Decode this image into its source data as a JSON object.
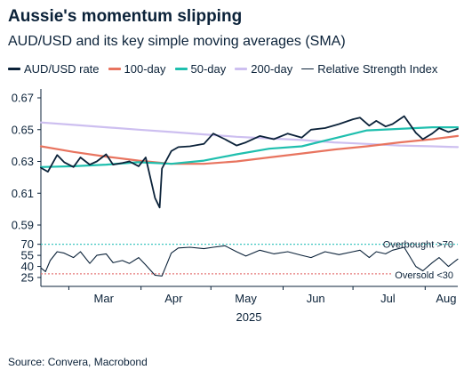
{
  "title": "Aussie's momentum slipping",
  "subtitle": "AUD/USD and its key simple moving averages (SMA)",
  "source": "Source: Convera, Macrobond",
  "colors": {
    "aud": "#0b2239",
    "sma100": "#e8745f",
    "sma50": "#1fbfae",
    "sma200": "#cdbff0",
    "rsi": "#0b2239",
    "overbought_line": "#3fc6c0",
    "oversold_line": "#e57a7a"
  },
  "legend": [
    {
      "label": "AUD/USD rate",
      "color": "#0b2239"
    },
    {
      "label": "100-day",
      "color": "#e8745f"
    },
    {
      "label": "50-day",
      "color": "#1fbfae"
    },
    {
      "label": "200-day",
      "color": "#cdbff0"
    },
    {
      "label": "Relative Strength Index",
      "color": "#0b2239"
    }
  ],
  "annotations": {
    "overbought": "Overbought >70",
    "oversold": "Oversold <30"
  },
  "chart_data": [
    {
      "type": "line",
      "ylim": [
        0.59,
        0.67
      ],
      "y_ticks": [
        "0.59",
        "0.61",
        "0.63",
        "0.65",
        "0.67"
      ],
      "x_range": [
        "2025-02-17",
        "2025-08-15"
      ],
      "series": [
        {
          "name": "AUD/USD rate",
          "key": "aud",
          "x": [
            "2025-02-17",
            "2025-02-20",
            "2025-02-24",
            "2025-02-27",
            "2025-03-03",
            "2025-03-06",
            "2025-03-10",
            "2025-03-13",
            "2025-03-17",
            "2025-03-20",
            "2025-03-24",
            "2025-03-27",
            "2025-03-31",
            "2025-04-03",
            "2025-04-07",
            "2025-04-09",
            "2025-04-10",
            "2025-04-14",
            "2025-04-17",
            "2025-04-22",
            "2025-04-28",
            "2025-05-02",
            "2025-05-07",
            "2025-05-12",
            "2025-05-16",
            "2025-05-22",
            "2025-05-28",
            "2025-06-03",
            "2025-06-09",
            "2025-06-13",
            "2025-06-19",
            "2025-06-25",
            "2025-07-01",
            "2025-07-04",
            "2025-07-08",
            "2025-07-11",
            "2025-07-15",
            "2025-07-18",
            "2025-07-23",
            "2025-07-28",
            "2025-07-31",
            "2025-08-04",
            "2025-08-07",
            "2025-08-11",
            "2025-08-15"
          ],
          "y": [
            0.626,
            0.6235,
            0.634,
            0.6295,
            0.6265,
            0.6325,
            0.628,
            0.63,
            0.6345,
            0.628,
            0.629,
            0.63,
            0.627,
            0.6325,
            0.607,
            0.601,
            0.6255,
            0.6365,
            0.639,
            0.6395,
            0.641,
            0.6475,
            0.644,
            0.64,
            0.642,
            0.646,
            0.644,
            0.6475,
            0.645,
            0.65,
            0.651,
            0.6535,
            0.6565,
            0.6575,
            0.6525,
            0.6555,
            0.652,
            0.6535,
            0.6585,
            0.648,
            0.644,
            0.6475,
            0.651,
            0.6485,
            0.6505
          ]
        },
        {
          "name": "100-day",
          "key": "sma100",
          "x": [
            "2025-02-17",
            "2025-03-03",
            "2025-03-17",
            "2025-03-31",
            "2025-04-14",
            "2025-04-28",
            "2025-05-12",
            "2025-05-26",
            "2025-06-09",
            "2025-06-23",
            "2025-07-07",
            "2025-07-21",
            "2025-08-04",
            "2025-08-15"
          ],
          "y": [
            0.6395,
            0.636,
            0.633,
            0.6305,
            0.6285,
            0.6285,
            0.63,
            0.6325,
            0.635,
            0.6375,
            0.6395,
            0.642,
            0.644,
            0.646
          ]
        },
        {
          "name": "50-day",
          "key": "sma50",
          "x": [
            "2025-02-17",
            "2025-03-03",
            "2025-03-17",
            "2025-03-31",
            "2025-04-14",
            "2025-04-28",
            "2025-05-12",
            "2025-05-26",
            "2025-06-09",
            "2025-06-23",
            "2025-07-07",
            "2025-07-21",
            "2025-08-04",
            "2025-08-15"
          ],
          "y": [
            0.6265,
            0.627,
            0.628,
            0.6295,
            0.6285,
            0.6305,
            0.6345,
            0.638,
            0.6395,
            0.6445,
            0.6495,
            0.6505,
            0.6515,
            0.6515
          ]
        },
        {
          "name": "200-day",
          "key": "sma200",
          "x": [
            "2025-02-17",
            "2025-03-03",
            "2025-03-17",
            "2025-03-31",
            "2025-04-14",
            "2025-04-28",
            "2025-05-12",
            "2025-05-26",
            "2025-06-09",
            "2025-06-23",
            "2025-07-07",
            "2025-07-21",
            "2025-08-04",
            "2025-08-15"
          ],
          "y": [
            0.6545,
            0.653,
            0.6515,
            0.65,
            0.6485,
            0.647,
            0.6455,
            0.6445,
            0.6435,
            0.642,
            0.641,
            0.64,
            0.6395,
            0.639
          ]
        }
      ]
    },
    {
      "type": "line",
      "ylim": [
        25,
        72
      ],
      "y_ticks": [
        "25",
        "40",
        "55",
        "70"
      ],
      "x_ticks": [
        "Mar",
        "Apr",
        "May",
        "Jun",
        "Jul",
        "Aug"
      ],
      "x_title": "2025",
      "thresholds": {
        "overbought": 70,
        "oversold": 30
      },
      "series": [
        {
          "name": "Relative Strength Index",
          "key": "rsi",
          "x": [
            "2025-02-17",
            "2025-02-19",
            "2025-02-21",
            "2025-02-24",
            "2025-02-27",
            "2025-03-03",
            "2025-03-06",
            "2025-03-10",
            "2025-03-13",
            "2025-03-17",
            "2025-03-20",
            "2025-03-24",
            "2025-03-27",
            "2025-03-31",
            "2025-04-03",
            "2025-04-07",
            "2025-04-10",
            "2025-04-14",
            "2025-04-17",
            "2025-04-22",
            "2025-04-28",
            "2025-05-02",
            "2025-05-07",
            "2025-05-12",
            "2025-05-16",
            "2025-05-22",
            "2025-05-28",
            "2025-06-03",
            "2025-06-09",
            "2025-06-13",
            "2025-06-19",
            "2025-06-25",
            "2025-07-01",
            "2025-07-04",
            "2025-07-08",
            "2025-07-11",
            "2025-07-15",
            "2025-07-18",
            "2025-07-23",
            "2025-07-28",
            "2025-07-31",
            "2025-08-04",
            "2025-08-07",
            "2025-08-11",
            "2025-08-15"
          ],
          "y": [
            38,
            33,
            48,
            60,
            58,
            52,
            60,
            44,
            55,
            57,
            45,
            48,
            44,
            52,
            42,
            28,
            27,
            58,
            65,
            66,
            64,
            66,
            68,
            60,
            54,
            62,
            57,
            60,
            55,
            52,
            60,
            56,
            60,
            62,
            52,
            60,
            57,
            62,
            66,
            40,
            34,
            45,
            52,
            40,
            50
          ]
        }
      ]
    }
  ]
}
